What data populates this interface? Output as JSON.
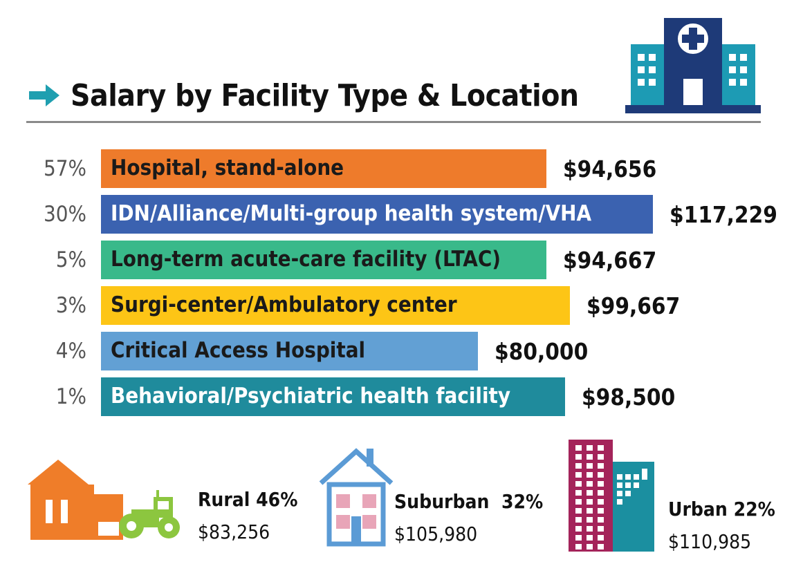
{
  "title": "Salary by Facility Type & Location",
  "colors": {
    "arrow": "#1f9fb0",
    "hospital_icon_dark": "#1e3a78",
    "hospital_icon_light": "#1d9bb4",
    "rural": "#ef7d29",
    "tractor": "#8cc63f",
    "suburban": "#5b9bd5",
    "suburban_window": "#e8a5b8",
    "urban_dark": "#a4245a",
    "urban_teal": "#1b8fa0"
  },
  "chart_data": {
    "type": "bar",
    "orientation": "horizontal",
    "title": "Salary by Facility Type & Location",
    "categories": [
      "Hospital, stand-alone",
      "IDN/Alliance/Multi-group health system/VHA",
      "Long-term acute-care facility (LTAC)",
      "Surgi-center/Ambulatory center",
      "Critical Access Hospital",
      "Behavioral/Psychiatric health facility"
    ],
    "percent_labels": [
      "57%",
      "30%",
      "5%",
      "3%",
      "4%",
      "1%"
    ],
    "values": [
      94656,
      117229,
      94667,
      99667,
      80000,
      98500
    ],
    "value_labels": [
      "$94,656",
      "$117,229",
      "$94,667",
      "$99,667",
      "$80,000",
      "$98,500"
    ],
    "bar_colors": [
      "#ee7b2b",
      "#3b62b0",
      "#39b98a",
      "#fdc516",
      "#62a0d4",
      "#1f8b9c"
    ],
    "label_colors": [
      "#1a1a1a",
      "#ffffff",
      "#1a1a1a",
      "#1a1a1a",
      "#1a1a1a",
      "#ffffff"
    ],
    "xlim": [
      0,
      117229
    ]
  },
  "locations": [
    {
      "name": "Rural 46%",
      "salary": "$83,256",
      "icon": "barn-tractor-icon"
    },
    {
      "name": "Suburban  32%",
      "salary": "$105,980",
      "icon": "house-icon"
    },
    {
      "name": "Urban 22%",
      "salary": "$110,985",
      "icon": "city-buildings-icon"
    }
  ]
}
